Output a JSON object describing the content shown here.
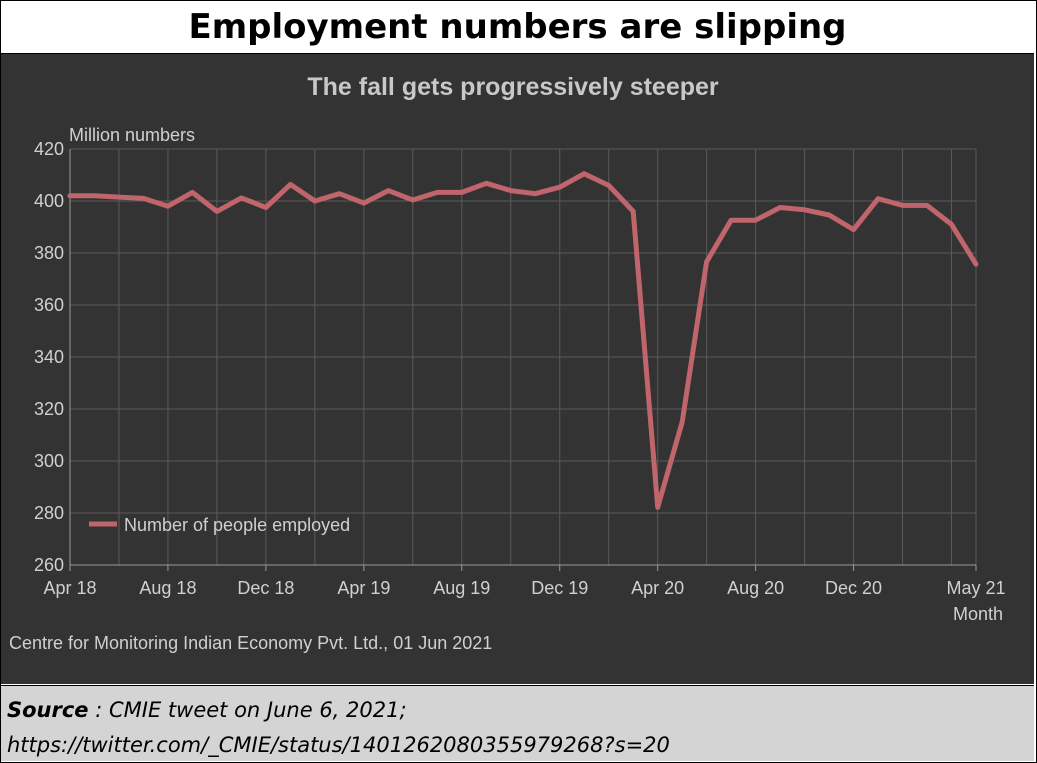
{
  "header": {
    "title": "Employment numbers are slipping"
  },
  "footer": {
    "source_label": "Source",
    "source_sep": " : ",
    "source_text": "CMIE tweet on June 6, 2021;",
    "source_url": "https://twitter.com/_CMIE/status/1401262080355979268?s=20"
  },
  "colors": {
    "panel_bg": "#333333",
    "grid": "#5a5a5a",
    "text": "#d0d0d0",
    "series": "#c0656b"
  },
  "chart_data": {
    "type": "line",
    "title": "The fall gets progressively steeper",
    "ylabel": "Million numbers",
    "xlabel": "Month",
    "credit": "Centre for Monitoring Indian Economy Pvt. Ltd., 01 Jun 2021",
    "ylim": [
      260,
      420
    ],
    "yticks": [
      260,
      280,
      300,
      320,
      340,
      360,
      380,
      400,
      420
    ],
    "grid": true,
    "legend_position": "bottom-left",
    "x_tick_labels": [
      {
        "label": "Apr 18",
        "index": 0
      },
      {
        "label": "Aug 18",
        "index": 4
      },
      {
        "label": "Dec 18",
        "index": 8
      },
      {
        "label": "Apr 19",
        "index": 12
      },
      {
        "label": "Aug 19",
        "index": 16
      },
      {
        "label": "Dec 19",
        "index": 20
      },
      {
        "label": "Apr 20",
        "index": 24
      },
      {
        "label": "Aug 20",
        "index": 28
      },
      {
        "label": "Dec 20",
        "index": 32
      },
      {
        "label": "May 21",
        "index": 37
      }
    ],
    "x": [
      "Apr 18",
      "May 18",
      "Jun 18",
      "Jul 18",
      "Aug 18",
      "Sep 18",
      "Oct 18",
      "Nov 18",
      "Dec 18",
      "Jan 19",
      "Feb 19",
      "Mar 19",
      "Apr 19",
      "May 19",
      "Jun 19",
      "Jul 19",
      "Aug 19",
      "Sep 19",
      "Oct 19",
      "Nov 19",
      "Dec 19",
      "Jan 20",
      "Feb 20",
      "Mar 20",
      "Apr 20",
      "May 20",
      "Jun 20",
      "Jul 20",
      "Aug 20",
      "Sep 20",
      "Oct 20",
      "Nov 20",
      "Dec 20",
      "Jan 21",
      "Feb 21",
      "Mar 21",
      "Apr 21",
      "May 21"
    ],
    "series": [
      {
        "name": "Number of people employed",
        "values": [
          402.0,
          402.0,
          401.5,
          401.0,
          398.0,
          403.3,
          396.0,
          401.2,
          397.5,
          406.4,
          400.0,
          402.8,
          399.2,
          404.0,
          400.4,
          403.3,
          403.3,
          406.8,
          404.0,
          402.8,
          405.3,
          410.5,
          406.0,
          396.0,
          282.2,
          315.0,
          376.6,
          392.6,
          392.6,
          397.5,
          396.6,
          394.6,
          389.0,
          400.9,
          398.3,
          398.3,
          391.0,
          375.7
        ]
      }
    ]
  }
}
